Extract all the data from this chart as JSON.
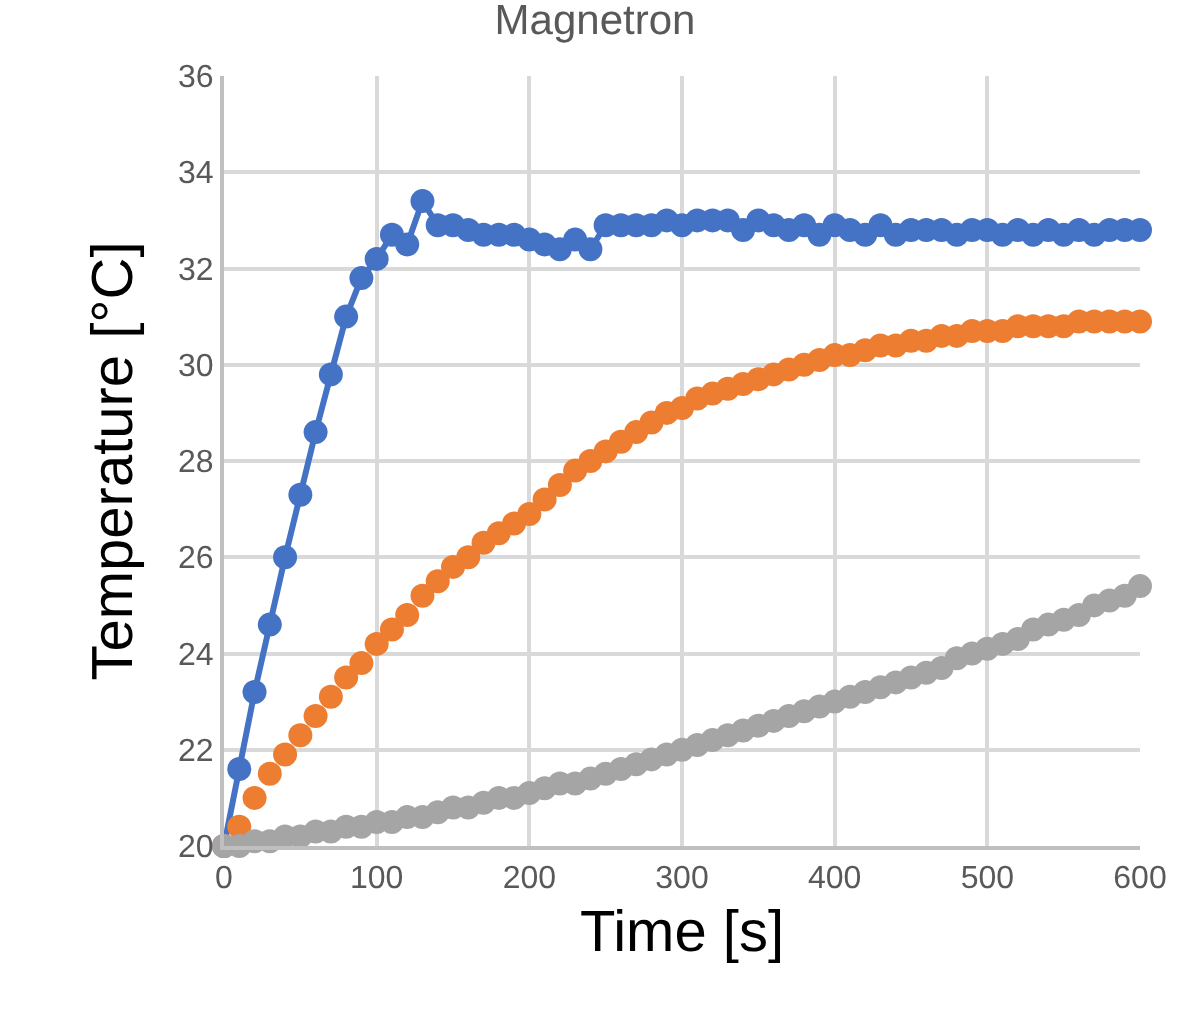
{
  "chart_data": {
    "type": "line",
    "title": "Magnetron",
    "xlabel": "Time [s]",
    "ylabel": "Temperature [°C]",
    "x": [
      0,
      10,
      20,
      30,
      40,
      50,
      60,
      70,
      80,
      90,
      100,
      110,
      120,
      130,
      140,
      150,
      160,
      170,
      180,
      190,
      200,
      210,
      220,
      230,
      240,
      250,
      260,
      270,
      280,
      290,
      300,
      310,
      320,
      330,
      340,
      350,
      360,
      370,
      380,
      390,
      400,
      410,
      420,
      430,
      440,
      450,
      460,
      470,
      480,
      490,
      500,
      510,
      520,
      530,
      540,
      550,
      560,
      570,
      580,
      590,
      600
    ],
    "series": [
      {
        "color": "#4472c4",
        "values": [
          20.0,
          21.6,
          23.2,
          24.6,
          26.0,
          27.3,
          28.6,
          29.8,
          31.0,
          31.8,
          32.2,
          32.7,
          32.5,
          33.4,
          32.9,
          32.9,
          32.8,
          32.7,
          32.7,
          32.7,
          32.6,
          32.5,
          32.4,
          32.6,
          32.4,
          32.9,
          32.9,
          32.9,
          32.9,
          33.0,
          32.9,
          33.0,
          33.0,
          33.0,
          32.8,
          33.0,
          32.9,
          32.8,
          32.9,
          32.7,
          32.9,
          32.8,
          32.7,
          32.9,
          32.7,
          32.8,
          32.8,
          32.8,
          32.7,
          32.8,
          32.8,
          32.7,
          32.8,
          32.7,
          32.8,
          32.7,
          32.8,
          32.7,
          32.8,
          32.8,
          32.8
        ]
      },
      {
        "type": "scatter",
        "color": "#ed7d31",
        "values": [
          20.0,
          20.4,
          21.0,
          21.5,
          21.9,
          22.3,
          22.7,
          23.1,
          23.5,
          23.8,
          24.2,
          24.5,
          24.8,
          25.2,
          25.5,
          25.8,
          26.0,
          26.3,
          26.5,
          26.7,
          26.9,
          27.2,
          27.5,
          27.8,
          28.0,
          28.2,
          28.4,
          28.6,
          28.8,
          29.0,
          29.1,
          29.3,
          29.4,
          29.5,
          29.6,
          29.7,
          29.8,
          29.9,
          30.0,
          30.1,
          30.2,
          30.2,
          30.3,
          30.4,
          30.4,
          30.5,
          30.5,
          30.6,
          30.6,
          30.7,
          30.7,
          30.7,
          30.8,
          30.8,
          30.8,
          30.8,
          30.9,
          30.9,
          30.9,
          30.9,
          30.9
        ]
      },
      {
        "type": "scatter",
        "color": "#a5a5a5",
        "values": [
          20.0,
          20.0,
          20.1,
          20.1,
          20.2,
          20.2,
          20.3,
          20.3,
          20.4,
          20.4,
          20.5,
          20.5,
          20.6,
          20.6,
          20.7,
          20.8,
          20.8,
          20.9,
          21.0,
          21.0,
          21.1,
          21.2,
          21.3,
          21.3,
          21.4,
          21.5,
          21.6,
          21.7,
          21.8,
          21.9,
          22.0,
          22.1,
          22.2,
          22.3,
          22.4,
          22.5,
          22.6,
          22.7,
          22.8,
          22.9,
          23.0,
          23.1,
          23.2,
          23.3,
          23.4,
          23.5,
          23.6,
          23.7,
          23.9,
          24.0,
          24.1,
          24.2,
          24.3,
          24.5,
          24.6,
          24.7,
          24.8,
          25.0,
          25.1,
          25.2,
          25.4
        ]
      }
    ],
    "xlim": [
      0,
      600
    ],
    "xticks": [
      0,
      100,
      200,
      300,
      400,
      500,
      600
    ],
    "ylim": [
      20,
      36
    ],
    "yticks": [
      20,
      22,
      24,
      26,
      28,
      30,
      32,
      34,
      36
    ],
    "grid": true,
    "marker": "circle",
    "line_style": "solid"
  }
}
